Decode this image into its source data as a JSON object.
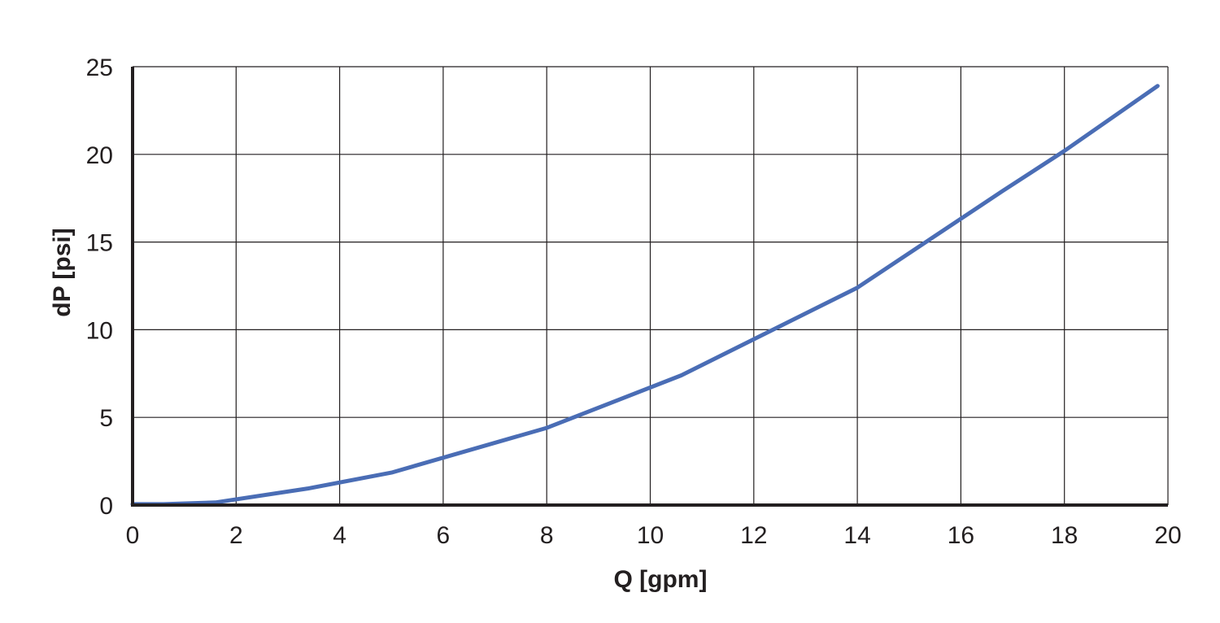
{
  "chart_data": {
    "type": "line",
    "xlabel": "Q [gpm]",
    "ylabel": "dP [psi]",
    "xlim": [
      0,
      20
    ],
    "ylim": [
      0,
      25
    ],
    "x_ticks": [
      "0",
      "2",
      "4",
      "6",
      "8",
      "10",
      "12",
      "14",
      "16",
      "18",
      "20"
    ],
    "y_ticks": [
      "0",
      "5",
      "10",
      "15",
      "20",
      "25"
    ],
    "grid": true,
    "series": [
      {
        "color": "#4a6db5",
        "x": [
          0,
          0.6,
          1.6,
          3.4,
          5.0,
          8.0,
          10.6,
          14.0,
          16.8,
          18.0,
          19.8
        ],
        "y": [
          0.05,
          0.05,
          0.15,
          0.95,
          1.85,
          4.4,
          7.4,
          12.4,
          17.9,
          20.2,
          23.9
        ]
      }
    ]
  }
}
